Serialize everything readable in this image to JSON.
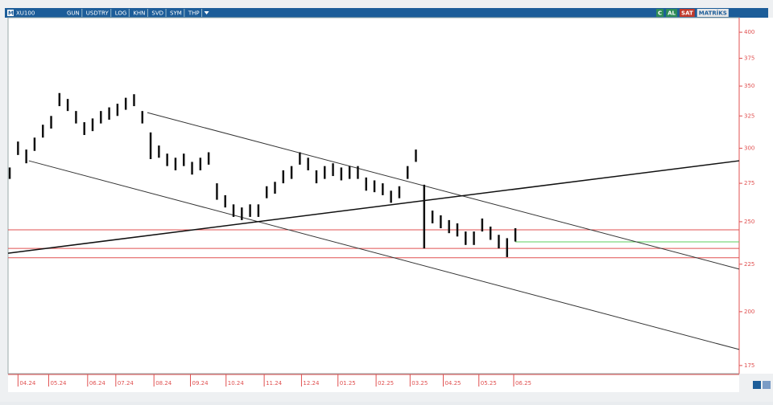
{
  "toolbar": {
    "symbol_prefix": "M",
    "symbol": "XU100",
    "buttons": [
      "GUN",
      "USDTRY",
      "LOG",
      "KHN",
      "SVD",
      "SYM",
      "THP"
    ],
    "right": [
      "C",
      "AL",
      "SAT",
      "MATRİKS"
    ]
  },
  "chart_data": {
    "type": "ohlc",
    "log_scale": true,
    "color": "#111111",
    "x": [
      -1,
      0,
      1,
      2,
      3,
      4,
      5,
      6,
      7,
      8,
      9,
      10,
      11,
      12,
      13,
      14,
      15,
      16,
      17,
      18,
      19,
      20,
      21,
      22,
      23,
      24,
      25,
      26,
      27,
      28,
      29,
      30,
      31,
      32,
      33,
      34,
      35,
      36,
      37,
      38,
      39,
      40,
      41,
      42,
      43,
      44,
      45,
      46,
      47,
      48,
      49,
      50,
      51,
      52,
      53,
      54,
      55,
      56,
      57,
      58,
      59,
      60
    ],
    "high": [
      286,
      305,
      299,
      308,
      318,
      325,
      344,
      339,
      329,
      320,
      323,
      329,
      332,
      335,
      340,
      343,
      329,
      312,
      302,
      296,
      293,
      296,
      290,
      293,
      297,
      275,
      267,
      261,
      259,
      261,
      261,
      273,
      276,
      284,
      287,
      297,
      293,
      284,
      287,
      289,
      286,
      287,
      287,
      279,
      277,
      275,
      270,
      273,
      287,
      299,
      274,
      257,
      254,
      251,
      249,
      244,
      244,
      252,
      247,
      242,
      240,
      246
    ],
    "low": [
      278,
      295,
      289,
      298,
      308,
      315,
      333,
      329,
      319,
      310,
      313,
      319,
      322,
      325,
      330,
      333,
      319,
      292,
      293,
      287,
      284,
      287,
      281,
      284,
      288,
      264,
      259,
      253,
      251,
      253,
      253,
      265,
      268,
      275,
      278,
      288,
      284,
      275,
      278,
      280,
      277,
      278,
      278,
      270,
      269,
      267,
      262,
      265,
      278,
      290,
      234,
      249,
      246,
      243,
      241,
      236,
      236,
      244,
      239,
      234,
      229,
      238
    ],
    "xlim": [
      -1.2,
      87
    ],
    "ylim": [
      171.5,
      414.7
    ],
    "yticks": [
      175,
      200,
      225,
      250,
      275,
      300,
      325,
      350,
      375,
      400
    ],
    "xticks": [
      {
        "value": 0,
        "label": "04.24"
      },
      {
        "value": 3.7,
        "label": "05.24"
      },
      {
        "value": 8.4,
        "label": "06.24"
      },
      {
        "value": 11.8,
        "label": "07.24"
      },
      {
        "value": 16.4,
        "label": "08.24"
      },
      {
        "value": 20.8,
        "label": "09.24"
      },
      {
        "value": 25.1,
        "label": "10.24"
      },
      {
        "value": 29.7,
        "label": "11.24"
      },
      {
        "value": 34.2,
        "label": "12.24"
      },
      {
        "value": 38.6,
        "label": "01.25"
      },
      {
        "value": 43.2,
        "label": "02.25"
      },
      {
        "value": 47.3,
        "label": "03.25"
      },
      {
        "value": 51.3,
        "label": "04.25"
      },
      {
        "value": 55.6,
        "label": "05.25"
      },
      {
        "value": 59.8,
        "label": "06.25"
      }
    ],
    "trend_lines": [
      {
        "x": [
          15.6,
          87
        ],
        "y": [
          327.7,
          222.3
        ],
        "color": "#333333"
      },
      {
        "x": [
          1.3,
          87
        ],
        "y": [
          290.8,
          182.1
        ],
        "color": "#333333"
      },
      {
        "x": [
          -1.2,
          87
        ],
        "y": [
          231.2,
          290.8
        ],
        "color": "#111111"
      }
    ],
    "levels": [
      {
        "value": 245,
        "color": "#e05050",
        "from": -1.2
      },
      {
        "value": 234,
        "color": "#e05050",
        "from": -1.2
      },
      {
        "value": 228.6,
        "color": "#e05050",
        "from": -1.2
      },
      {
        "value": 237.8,
        "color": "#5ccf5c",
        "from": 60
      }
    ]
  }
}
